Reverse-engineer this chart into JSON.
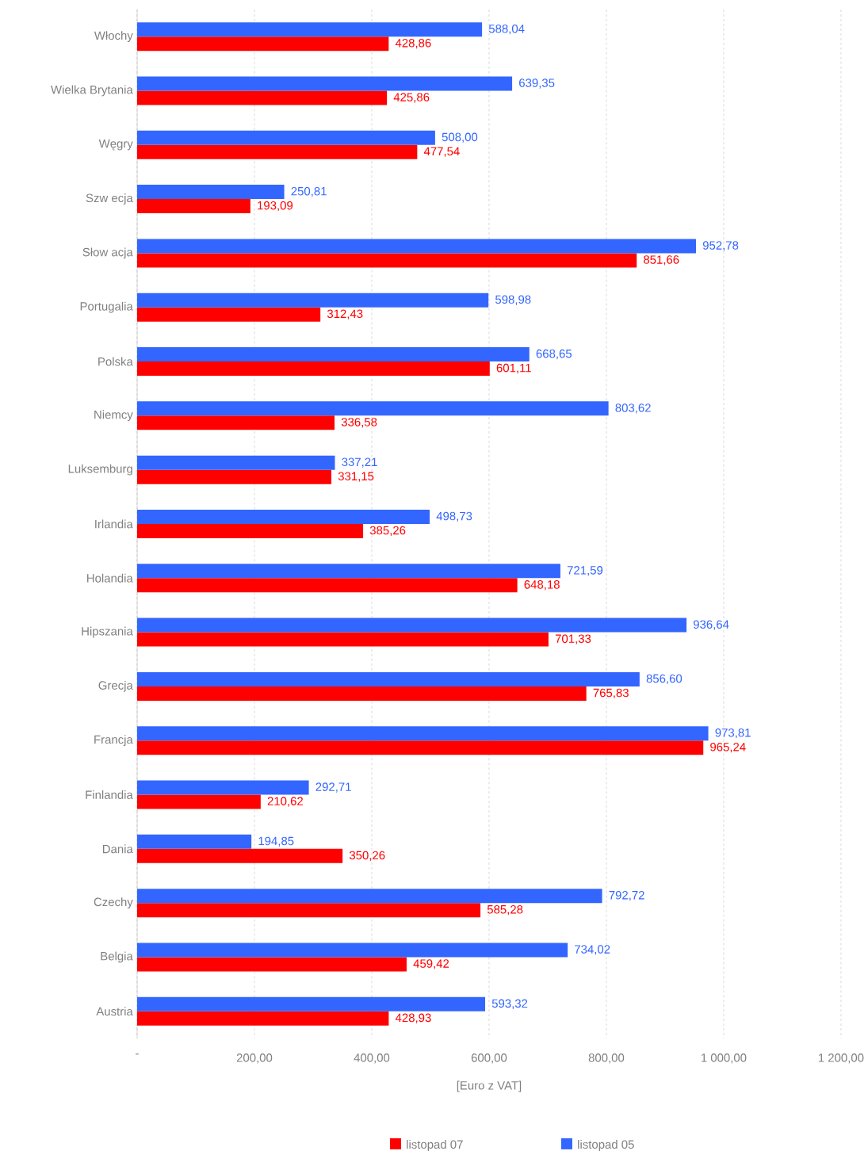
{
  "chart_data": {
    "type": "bar",
    "orientation": "horizontal",
    "xlabel": "[Euro z VAT]",
    "categories": [
      "Włochy",
      "Wielka Brytania",
      "Węgry",
      "Szw ecja",
      "Słow acja",
      "Portugalia",
      "Polska",
      "Niemcy",
      "Luksemburg",
      "Irlandia",
      "Holandia",
      "Hipszania",
      "Grecja",
      "Francja",
      "Finlandia",
      "Dania",
      "Czechy",
      "Belgia",
      "Austria"
    ],
    "series": [
      {
        "name": "listopad 07",
        "color": "#ff0000",
        "values": [
          428.86,
          425.86,
          477.54,
          193.09,
          851.66,
          312.43,
          601.11,
          336.58,
          331.15,
          385.26,
          648.18,
          701.33,
          765.83,
          965.24,
          210.62,
          350.26,
          585.28,
          459.42,
          428.93
        ],
        "value_labels": [
          "428,86",
          "425,86",
          "477,54",
          "193,09",
          "851,66",
          "312,43",
          "601,11",
          "336,58",
          "331,15",
          "385,26",
          "648,18",
          "701,33",
          "765,83",
          "965,24",
          "210,62",
          "350,26",
          "585,28",
          "459,42",
          "428,93"
        ]
      },
      {
        "name": "listopad 05",
        "color": "#3366ff",
        "values": [
          588.04,
          639.35,
          508.0,
          250.81,
          952.78,
          598.98,
          668.65,
          803.62,
          337.21,
          498.73,
          721.59,
          936.64,
          856.6,
          973.81,
          292.71,
          194.85,
          792.72,
          734.02,
          593.32
        ],
        "value_labels": [
          "588,04",
          "639,35",
          "508,00",
          "250,81",
          "952,78",
          "598,98",
          "668,65",
          "803,62",
          "337,21",
          "498,73",
          "721,59",
          "936,64",
          "856,60",
          "973,81",
          "292,71",
          "194,85",
          "792,72",
          "734,02",
          "593,32"
        ]
      }
    ],
    "xlim": [
      0,
      1200
    ],
    "xticks": [
      {
        "value": 0,
        "label": "-"
      },
      {
        "value": 200,
        "label": "200,00"
      },
      {
        "value": 400,
        "label": "400,00"
      },
      {
        "value": 600,
        "label": "600,00"
      },
      {
        "value": 800,
        "label": "800,00"
      },
      {
        "value": 1000,
        "label": "1 000,00"
      },
      {
        "value": 1200,
        "label": "1 200,00"
      }
    ],
    "grid": "x",
    "legend": "bottom"
  }
}
